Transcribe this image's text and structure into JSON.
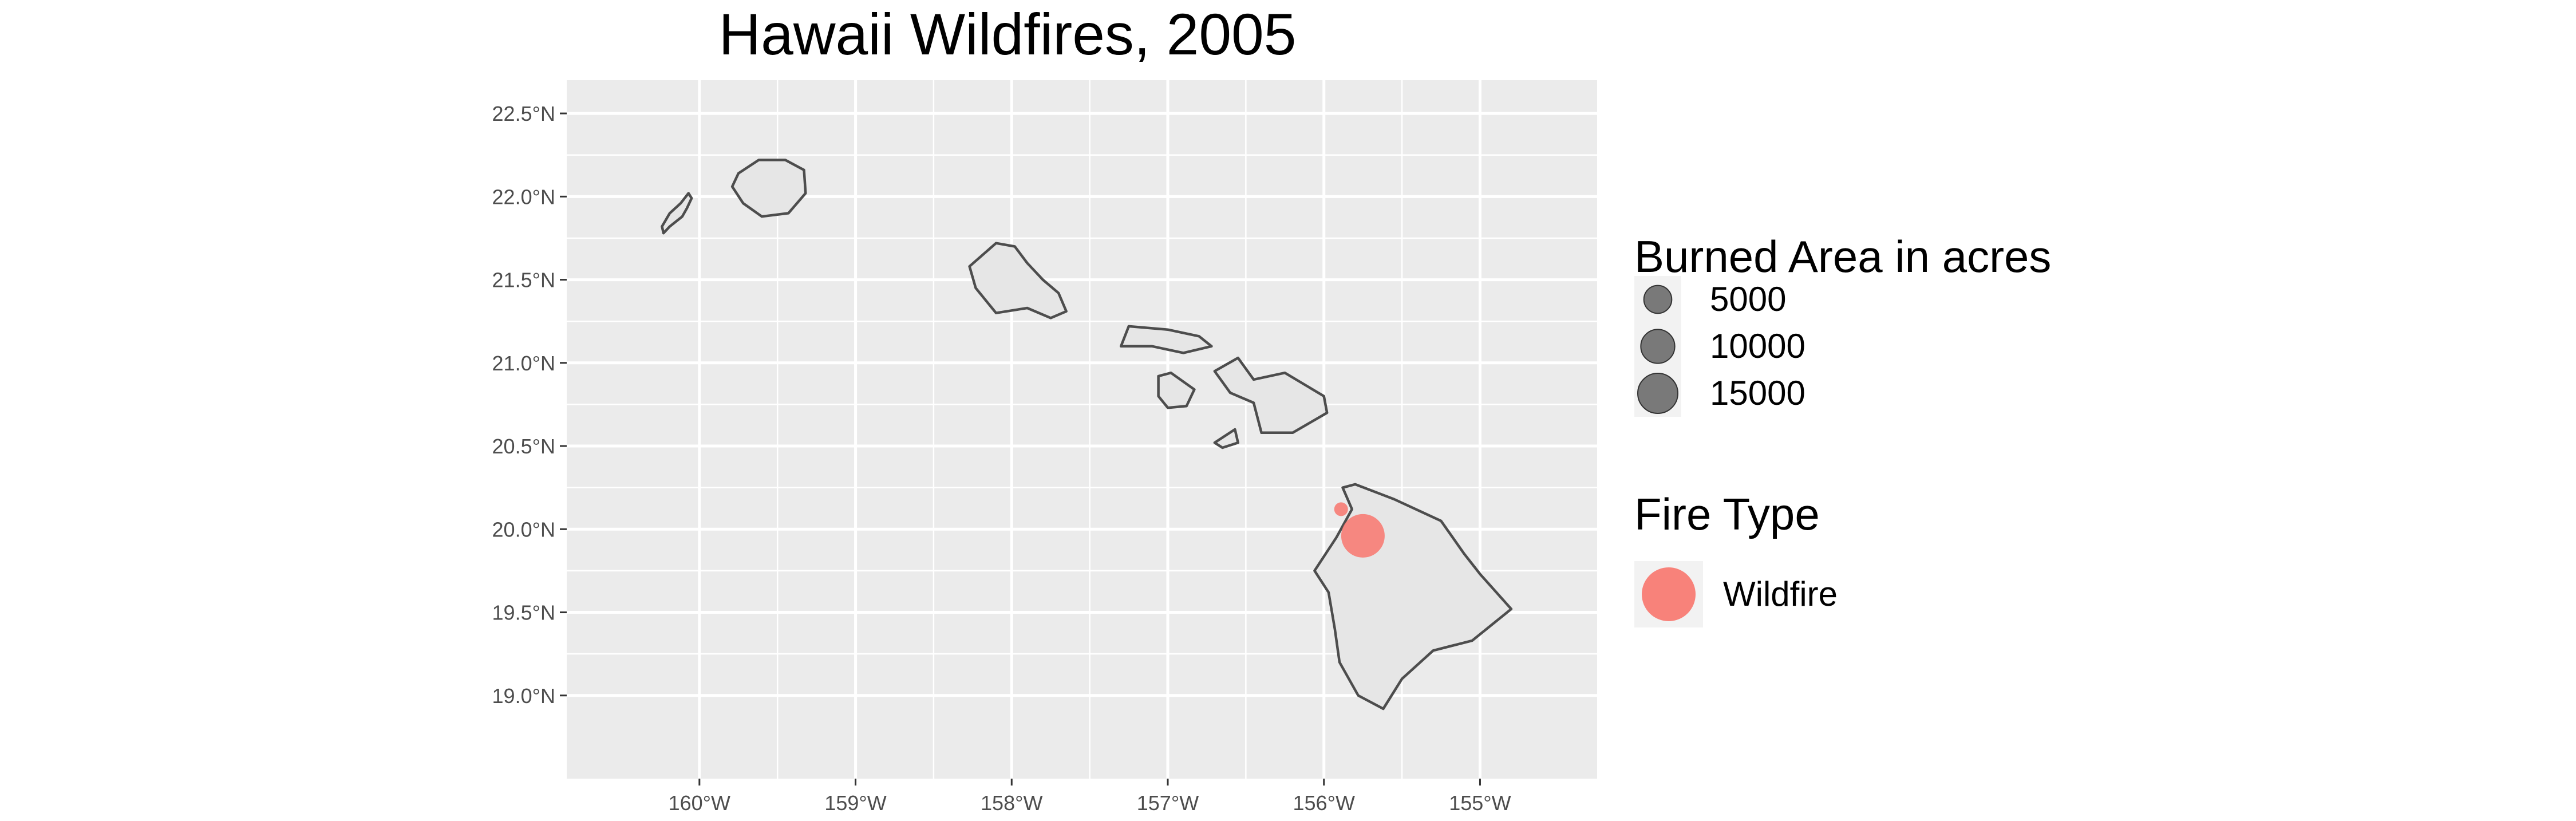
{
  "chart_data": {
    "type": "map",
    "title": "Hawaii Wildfires, 2005",
    "xlim": [
      -160.85,
      -154.25
    ],
    "ylim": [
      18.5,
      22.7
    ],
    "x_ticks": [
      {
        "value": -160,
        "label": "160°W"
      },
      {
        "value": -159,
        "label": "159°W"
      },
      {
        "value": -158,
        "label": "158°W"
      },
      {
        "value": -157,
        "label": "157°W"
      },
      {
        "value": -156,
        "label": "156°W"
      },
      {
        "value": -155,
        "label": "155°W"
      }
    ],
    "y_ticks": [
      {
        "value": 19.0,
        "label": "19.0°N"
      },
      {
        "value": 19.5,
        "label": "19.5°N"
      },
      {
        "value": 20.0,
        "label": "20.0°N"
      },
      {
        "value": 20.5,
        "label": "20.5°N"
      },
      {
        "value": 21.0,
        "label": "21.0°N"
      },
      {
        "value": 21.5,
        "label": "21.5°N"
      },
      {
        "value": 22.0,
        "label": "22.0°N"
      },
      {
        "value": 22.5,
        "label": "22.5°N"
      }
    ],
    "grid": true,
    "points": [
      {
        "lon": -155.75,
        "lat": 19.96,
        "acres": 15000,
        "fire_type": "Wildfire"
      },
      {
        "lon": -155.89,
        "lat": 20.12,
        "acres": 1500,
        "fire_type": "Wildfire"
      }
    ],
    "size_legend": {
      "title": "Burned Area in acres",
      "entries": [
        {
          "value": 5000,
          "label": "5000"
        },
        {
          "value": 10000,
          "label": "10000"
        },
        {
          "value": 15000,
          "label": "15000"
        }
      ]
    },
    "color_legend": {
      "title": "Fire Type",
      "entries": [
        {
          "label": "Wildfire",
          "color": "#f8766d"
        }
      ]
    },
    "islands": [
      {
        "name": "Niihau",
        "coords": [
          [
            -160.24,
            21.82
          ],
          [
            -160.19,
            21.9
          ],
          [
            -160.12,
            21.96
          ],
          [
            -160.07,
            22.02
          ],
          [
            -160.05,
            21.99
          ],
          [
            -160.08,
            21.93
          ],
          [
            -160.11,
            21.88
          ],
          [
            -160.19,
            21.82
          ],
          [
            -160.23,
            21.78
          ]
        ]
      },
      {
        "name": "Kauai",
        "coords": [
          [
            -159.75,
            22.14
          ],
          [
            -159.62,
            22.22
          ],
          [
            -159.45,
            22.22
          ],
          [
            -159.33,
            22.16
          ],
          [
            -159.32,
            22.02
          ],
          [
            -159.43,
            21.9
          ],
          [
            -159.6,
            21.88
          ],
          [
            -159.72,
            21.96
          ],
          [
            -159.79,
            22.06
          ]
        ]
      },
      {
        "name": "Oahu",
        "coords": [
          [
            -158.27,
            21.58
          ],
          [
            -158.1,
            21.72
          ],
          [
            -157.98,
            21.7
          ],
          [
            -157.9,
            21.6
          ],
          [
            -157.8,
            21.5
          ],
          [
            -157.7,
            21.42
          ],
          [
            -157.65,
            21.31
          ],
          [
            -157.75,
            21.27
          ],
          [
            -157.9,
            21.33
          ],
          [
            -158.1,
            21.3
          ],
          [
            -158.23,
            21.45
          ]
        ]
      },
      {
        "name": "Molokai",
        "coords": [
          [
            -157.3,
            21.1
          ],
          [
            -157.25,
            21.22
          ],
          [
            -157.0,
            21.2
          ],
          [
            -156.8,
            21.16
          ],
          [
            -156.72,
            21.1
          ],
          [
            -156.9,
            21.06
          ],
          [
            -157.1,
            21.1
          ]
        ]
      },
      {
        "name": "Lanai",
        "coords": [
          [
            -157.06,
            20.92
          ],
          [
            -156.98,
            20.94
          ],
          [
            -156.83,
            20.84
          ],
          [
            -156.88,
            20.74
          ],
          [
            -157.0,
            20.73
          ],
          [
            -157.06,
            20.8
          ]
        ]
      },
      {
        "name": "Maui",
        "coords": [
          [
            -156.7,
            20.95
          ],
          [
            -156.55,
            21.03
          ],
          [
            -156.45,
            20.9
          ],
          [
            -156.25,
            20.94
          ],
          [
            -156.0,
            20.8
          ],
          [
            -155.98,
            20.7
          ],
          [
            -156.2,
            20.58
          ],
          [
            -156.4,
            20.58
          ],
          [
            -156.45,
            20.76
          ],
          [
            -156.6,
            20.82
          ]
        ]
      },
      {
        "name": "Kahoolawe",
        "coords": [
          [
            -156.7,
            20.52
          ],
          [
            -156.57,
            20.6
          ],
          [
            -156.55,
            20.52
          ],
          [
            -156.65,
            20.49
          ]
        ]
      },
      {
        "name": "Hawaii",
        "coords": [
          [
            -155.88,
            20.25
          ],
          [
            -155.82,
            20.12
          ],
          [
            -155.92,
            19.95
          ],
          [
            -156.06,
            19.75
          ],
          [
            -155.97,
            19.62
          ],
          [
            -155.93,
            19.4
          ],
          [
            -155.9,
            19.2
          ],
          [
            -155.78,
            19.0
          ],
          [
            -155.62,
            18.92
          ],
          [
            -155.5,
            19.1
          ],
          [
            -155.3,
            19.27
          ],
          [
            -155.05,
            19.33
          ],
          [
            -154.8,
            19.52
          ],
          [
            -155.0,
            19.73
          ],
          [
            -155.1,
            19.85
          ],
          [
            -155.25,
            20.05
          ],
          [
            -155.55,
            20.18
          ],
          [
            -155.8,
            20.27
          ]
        ]
      }
    ]
  }
}
